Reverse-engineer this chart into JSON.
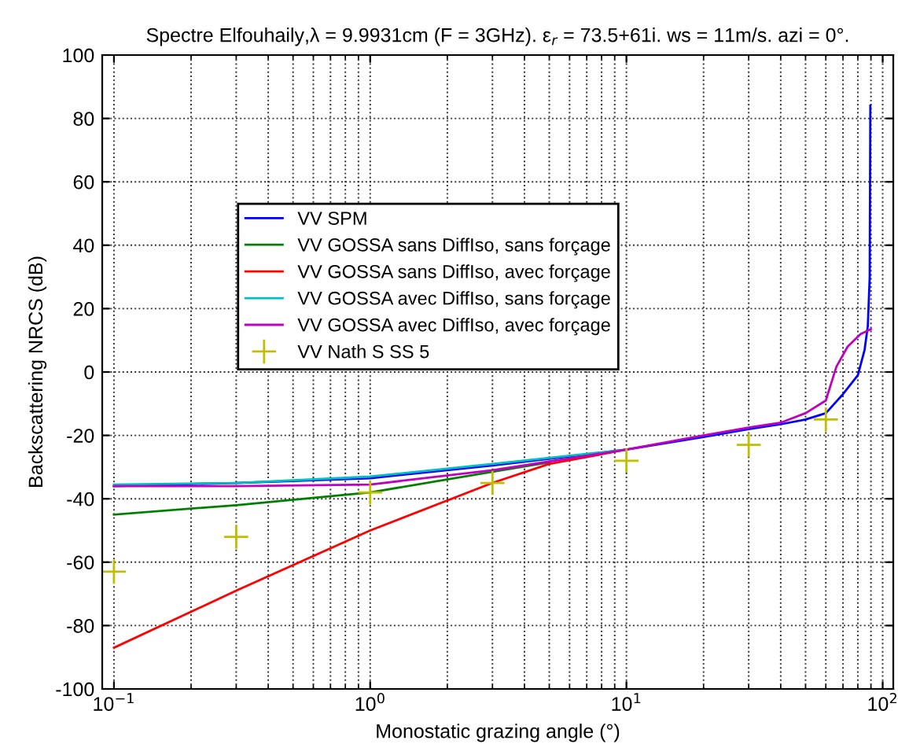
{
  "chart_data": {
    "type": "line",
    "title": "Spectre Elfouhaily,λ = 9.9931cm (F = 3GHz). ε$_{r}$ = 73.5+61i. ws = 11m/s. azi = 0°.",
    "xlabel": "Monostatic grazing angle (°)",
    "ylabel": "Backscattering NRCS (dB)",
    "log": "x",
    "xlim": [
      0.09,
      110
    ],
    "ylim": [
      -100,
      100
    ],
    "xticks": [
      {
        "value": 0.1,
        "label": "10$^{−1}$"
      },
      {
        "value": 1,
        "label": "10$^{0}$"
      },
      {
        "value": 10,
        "label": "10$^{1}$"
      },
      {
        "value": 100,
        "label": "10$^{2}$"
      }
    ],
    "yticks": [
      -100,
      -80,
      -60,
      -40,
      -20,
      0,
      20,
      40,
      60,
      80,
      100
    ],
    "grid": true,
    "legend": "top left",
    "line_style": "solid",
    "series": [
      {
        "name": "VV SPM",
        "color": "#0000ff",
        "x": [
          0.1,
          0.3,
          1,
          3,
          10,
          20,
          30,
          40,
          50,
          60,
          70,
          80,
          85,
          87.5,
          89,
          89.5
        ],
        "values": [
          -36,
          -35,
          -33.5,
          -29.5,
          -24.5,
          -20.5,
          -18,
          -16.5,
          -15,
          -13,
          -7,
          -1,
          7,
          14.5,
          30,
          84
        ]
      },
      {
        "name": "VV GOSSA sans DiffIso, sans forçage",
        "color": "#008000",
        "x": [
          0.1,
          0.3,
          1,
          3,
          5
        ],
        "values": [
          -45,
          -42,
          -38,
          -31.5,
          -28.5
        ]
      },
      {
        "name": "VV GOSSA sans DiffIso, avec forçage",
        "color": "#ff0000",
        "x": [
          0.1,
          0.3,
          1,
          3,
          5,
          10
        ],
        "values": [
          -87,
          -69,
          -50,
          -35,
          -29,
          -24.5
        ]
      },
      {
        "name": "VV GOSSA avec DiffIso, sans forçage",
        "color": "#00bfbf",
        "x": [
          0.1,
          0.3,
          1,
          3,
          10
        ],
        "values": [
          -35.5,
          -35,
          -33,
          -29,
          -24.5
        ]
      },
      {
        "name": "VV GOSSA avec DiffIso, avec forçage",
        "color": "#bf00bf",
        "x": [
          0.1,
          0.3,
          1,
          3,
          10,
          20,
          30,
          40,
          50,
          60,
          66,
          73,
          82,
          89.9
        ],
        "values": [
          -36,
          -36,
          -35.5,
          -31,
          -24.5,
          -20,
          -17.5,
          -16,
          -13,
          -9,
          1.7,
          8,
          12,
          13.5
        ]
      },
      {
        "name": "VV Nath S SS 5",
        "color": "#bfbf00",
        "type": "scatter",
        "marker": "cross",
        "x": [
          0.1,
          0.3,
          1,
          3,
          10,
          30,
          60
        ],
        "values": [
          -63,
          -52,
          -38,
          -35,
          -28,
          -23,
          -15
        ]
      }
    ]
  }
}
